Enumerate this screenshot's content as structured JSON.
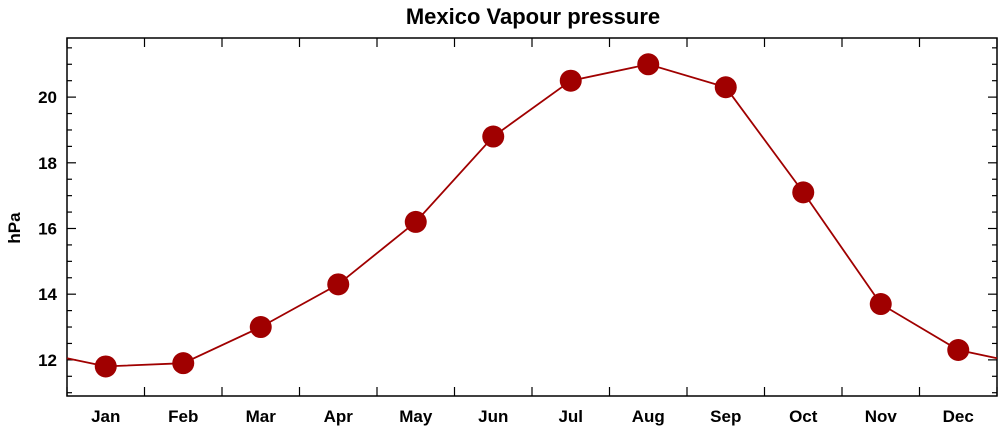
{
  "chart_data": {
    "type": "line",
    "title": "Mexico Vapour pressure",
    "xlabel": "",
    "ylabel": "hPa",
    "categories": [
      "Jan",
      "Feb",
      "Mar",
      "Apr",
      "May",
      "Jun",
      "Jul",
      "Aug",
      "Sep",
      "Oct",
      "Nov",
      "Dec"
    ],
    "series": [
      {
        "values": [
          11.8,
          11.9,
          13.0,
          14.3,
          16.2,
          18.8,
          20.5,
          21.0,
          20.3,
          17.1,
          13.7,
          12.3
        ]
      }
    ],
    "yticks": [
      12,
      14,
      16,
      18,
      20
    ],
    "ylim": [
      10.9,
      21.8
    ],
    "grid": false,
    "line_color": "#a00000",
    "marker_color": "#a00000"
  }
}
